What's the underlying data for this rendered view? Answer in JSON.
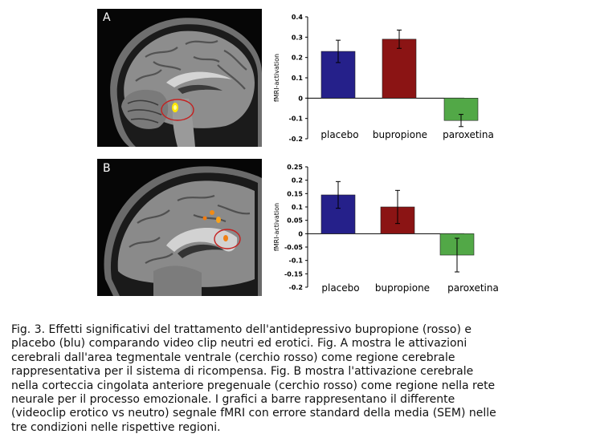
{
  "panels": [
    {
      "letter": "A"
    },
    {
      "letter": "B"
    }
  ],
  "chart_data": [
    {
      "type": "bar",
      "panel": "A",
      "categories": [
        "placebo",
        "bupropione",
        "paroxetina"
      ],
      "values": [
        0.23,
        0.29,
        -0.11
      ],
      "errors": [
        0.055,
        0.045,
        0.03
      ],
      "colors": [
        "#25208a",
        "#8b1414",
        "#52a847"
      ],
      "ylabel": "fMRI-activation",
      "ylim": [
        -0.2,
        0.4
      ],
      "yticks": [
        0.4,
        0.3,
        0.2,
        0.1,
        0,
        -0.1,
        -0.2
      ],
      "yticklabels": [
        "0.4",
        "0.3",
        "0.2",
        "0.1",
        "0",
        "-0.1",
        "-0.2"
      ]
    },
    {
      "type": "bar",
      "panel": "B",
      "categories": [
        "placebo",
        "bupropione",
        "paroxetina"
      ],
      "values": [
        0.145,
        0.1,
        -0.08
      ],
      "errors": [
        0.05,
        0.062,
        0.063
      ],
      "colors": [
        "#25208a",
        "#8b1414",
        "#52a847"
      ],
      "ylabel": "fMRI-activation",
      "ylim": [
        -0.2,
        0.25
      ],
      "yticks": [
        0.25,
        0.2,
        0.15,
        0.1,
        0.05,
        0,
        -0.05,
        -0.1,
        -0.15,
        -0.2
      ],
      "yticklabels": [
        "0.25",
        "0.2",
        "0.15",
        "0.1",
        "0.05",
        "0",
        "-0.05",
        "-0.1",
        "-0.15",
        "-0.2"
      ]
    }
  ],
  "caption": [
    "Fig. 3. Effetti significativi del trattamento dell'antidepressivo bupropione (rosso) e",
    "placebo (blu) comparando video clip neutri ed erotici. Fig. A mostra le attivazioni",
    "cerebrali dall'area tegmentale ventrale (cerchio rosso) come regione cerebrale",
    "rappresentativa per il sistema di ricompensa. Fig. B mostra l'attivazione cerebrale",
    "nella corteccia cingolata anteriore pregenuale (cerchio rosso) come regione nella rete",
    "neurale per il processo emozionale. I grafici a barre rappresentano il differente",
    "(videoclip erotico vs neutro) segnale fMRI con errore standard della media (SEM) nelle",
    "tre condizioni nelle rispettive regioni."
  ]
}
